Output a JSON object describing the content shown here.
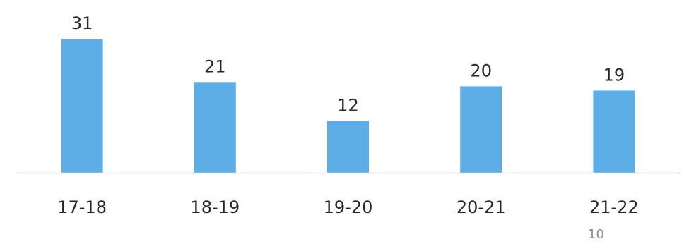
{
  "chart_data": {
    "type": "bar",
    "categories": [
      "17-18",
      "18-19",
      "19-20",
      "20-21",
      "21-22"
    ],
    "values": [
      31,
      21,
      12,
      20,
      19
    ],
    "title": "",
    "xlabel": "",
    "ylabel": "",
    "ylim": [
      0,
      31
    ],
    "grid": false,
    "data_labels": true,
    "bar_color": "#5DADE6",
    "axis_color": "#D9D9D9"
  },
  "page": {
    "number": "10"
  }
}
